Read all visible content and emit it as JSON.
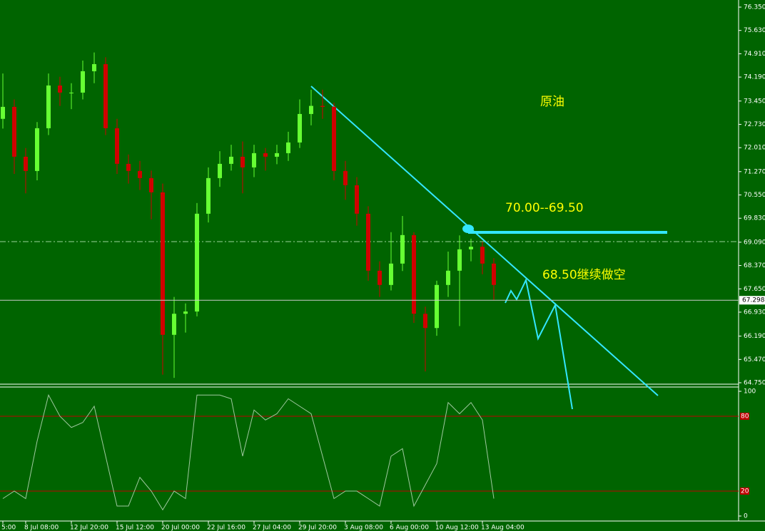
{
  "chart_data": [
    {
      "type": "candlestick",
      "categories": [
        "5:00",
        null,
        "8 Jul 08:00",
        null,
        null,
        null,
        "12 Jul 20:00",
        null,
        null,
        null,
        "15 Jul 12:00",
        null,
        null,
        null,
        "20 Jul 00:00",
        null,
        null,
        null,
        "22 Jul 16:00",
        null,
        null,
        null,
        "27 Jul 04:00",
        null,
        null,
        null,
        "29 Jul 20:00",
        null,
        null,
        null,
        "3 Aug 08:00",
        null,
        null,
        null,
        "6 Aug 00:00",
        null,
        null,
        null,
        "10 Aug 12:00",
        null,
        null,
        null,
        "13 Aug 04:00",
        null
      ],
      "open": [
        72.9,
        73.27,
        71.73,
        71.29,
        72.61,
        73.93,
        73.71,
        73.71,
        74.37,
        74.59,
        72.61,
        71.51,
        71.29,
        71.07,
        70.63,
        66.23,
        66.88,
        66.95,
        69.97,
        71.07,
        71.51,
        71.73,
        71.4,
        71.84,
        71.73,
        71.84,
        72.17,
        73.05,
        73.3,
        73.27,
        71.29,
        70.85,
        69.97,
        68.21,
        67.77,
        68.43,
        69.31,
        66.88,
        66.44,
        67.77,
        68.21,
        68.87,
        68.95,
        68.43
      ],
      "high": [
        74.3,
        73.5,
        72.0,
        72.8,
        74.3,
        74.2,
        74.0,
        74.7,
        74.95,
        74.8,
        72.9,
        71.8,
        71.6,
        71.3,
        70.9,
        67.4,
        67.2,
        70.3,
        71.4,
        71.9,
        72.1,
        72.2,
        72.1,
        72.0,
        72.1,
        72.5,
        73.5,
        73.8,
        73.8,
        73.4,
        71.6,
        71.1,
        70.2,
        68.5,
        69.4,
        69.9,
        69.4,
        67.1,
        67.9,
        68.8,
        69.3,
        69.2,
        69.1,
        68.6
      ],
      "low": [
        72.6,
        71.2,
        70.6,
        71.0,
        72.4,
        73.3,
        73.2,
        73.5,
        74.0,
        72.4,
        71.2,
        70.9,
        70.7,
        69.8,
        65.0,
        64.9,
        66.3,
        66.8,
        69.7,
        70.8,
        71.3,
        70.6,
        71.1,
        71.3,
        71.5,
        71.6,
        72.0,
        72.7,
        72.9,
        71.0,
        70.4,
        69.6,
        67.9,
        67.4,
        67.6,
        68.2,
        66.6,
        65.1,
        66.2,
        67.4,
        66.5,
        68.5,
        68.1,
        67.3
      ],
      "close": [
        73.27,
        71.73,
        71.29,
        72.61,
        73.93,
        73.71,
        73.71,
        74.37,
        74.59,
        72.61,
        71.51,
        71.29,
        71.07,
        70.63,
        66.23,
        66.88,
        66.95,
        69.97,
        71.07,
        71.51,
        71.73,
        71.4,
        71.84,
        71.73,
        71.84,
        72.17,
        73.05,
        73.3,
        73.27,
        71.29,
        70.85,
        69.97,
        68.21,
        67.77,
        68.43,
        69.31,
        66.88,
        66.44,
        67.77,
        68.21,
        68.87,
        68.95,
        68.43,
        67.77
      ],
      "up_color": "#66ff33",
      "down_color": "#d00000",
      "ylim": [
        64.75,
        76.35
      ],
      "yticks": [
        {
          "value": 76.35,
          "label": "76.350"
        },
        {
          "value": 75.63,
          "label": "75.630"
        },
        {
          "value": 74.91,
          "label": "74.910"
        },
        {
          "value": 74.19,
          "label": "74.190"
        },
        {
          "value": 73.45,
          "label": "73.450"
        },
        {
          "value": 72.73,
          "label": "72.730"
        },
        {
          "value": 72.01,
          "label": "72.010"
        },
        {
          "value": 71.27,
          "label": "71.270"
        },
        {
          "value": 70.55,
          "label": "70.550"
        },
        {
          "value": 69.83,
          "label": "69.830"
        },
        {
          "value": 69.09,
          "label": "69.090"
        },
        {
          "value": 68.37,
          "label": "68.370"
        },
        {
          "value": 67.65,
          "label": "67.650"
        },
        {
          "value": 66.93,
          "label": "66.930"
        },
        {
          "value": 66.19,
          "label": "66.190"
        },
        {
          "value": 65.47,
          "label": "65.470"
        },
        {
          "value": 64.75,
          "label": "64.750"
        }
      ],
      "current_price": {
        "value": 67.298,
        "label": "67.298"
      },
      "annotations": [
        "原油",
        "70.00--69.50",
        "68.50继续做空"
      ]
    },
    {
      "type": "line",
      "values": [
        14,
        20,
        14,
        60,
        97,
        80,
        71,
        75,
        88,
        48,
        8,
        8,
        31,
        20,
        5,
        20,
        14,
        97,
        97,
        97,
        94,
        48,
        85,
        77,
        82,
        94,
        88,
        82,
        48,
        14,
        20,
        20,
        14,
        8,
        48,
        54,
        8,
        25,
        42,
        91,
        82,
        91,
        77,
        14
      ],
      "color": "#9fc89f",
      "ylim": [
        0,
        100
      ],
      "yticks": [
        0,
        100
      ],
      "levels": [
        80,
        20
      ],
      "level_color": "#c00000"
    }
  ]
}
